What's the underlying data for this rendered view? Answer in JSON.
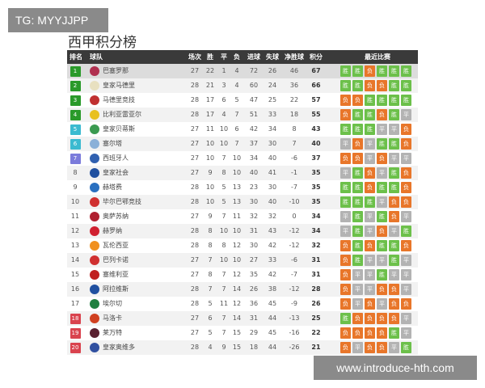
{
  "watermarks": {
    "top_left": "TG: MYYJJPP",
    "bottom_right": "www.introduce-hth.com"
  },
  "title": "西甲积分榜",
  "headers": {
    "rank": "排名",
    "team": "球队",
    "played": "场次",
    "won": "胜",
    "drawn": "平",
    "lost": "负",
    "gf": "进球",
    "ga": "失球",
    "gd": "净胜球",
    "pts": "积分",
    "form": "最近比赛"
  },
  "colors": {
    "win": "#6cc04a",
    "loss": "#e8762a",
    "draw": "#b3b3b3",
    "rank_cl": "#2a9a2a",
    "rank_el": "#3bbad0",
    "rank_conf": "#7b7bdb",
    "rank_rel": "#d9434e"
  },
  "rows": [
    {
      "rank": "1",
      "team": "巴塞罗那",
      "p": "27",
      "w": "22",
      "d": "1",
      "l": "4",
      "gf": "72",
      "ga": "26",
      "gd": "46",
      "pts": "67",
      "form": [
        "胜",
        "胜",
        "负",
        "胜",
        "胜",
        "胜"
      ]
    },
    {
      "rank": "2",
      "team": "皇家马德里",
      "p": "28",
      "w": "21",
      "d": "3",
      "l": "4",
      "gf": "60",
      "ga": "24",
      "gd": "36",
      "pts": "66",
      "form": [
        "胜",
        "胜",
        "负",
        "负",
        "胜",
        "胜"
      ]
    },
    {
      "rank": "3",
      "team": "马德里竞技",
      "p": "28",
      "w": "17",
      "d": "6",
      "l": "5",
      "gf": "47",
      "ga": "25",
      "gd": "22",
      "pts": "57",
      "form": [
        "负",
        "负",
        "胜",
        "胜",
        "胜",
        "胜"
      ]
    },
    {
      "rank": "4",
      "team": "比利亚雷亚尔",
      "p": "28",
      "w": "17",
      "d": "4",
      "l": "7",
      "gf": "51",
      "ga": "33",
      "gd": "18",
      "pts": "55",
      "form": [
        "负",
        "胜",
        "胜",
        "负",
        "胜",
        "平"
      ]
    },
    {
      "rank": "5",
      "team": "皇家贝蒂斯",
      "p": "27",
      "w": "11",
      "d": "10",
      "l": "6",
      "gf": "42",
      "ga": "34",
      "gd": "8",
      "pts": "43",
      "form": [
        "胜",
        "胜",
        "胜",
        "平",
        "平",
        "负"
      ]
    },
    {
      "rank": "6",
      "team": "塞尔塔",
      "p": "27",
      "w": "10",
      "d": "10",
      "l": "7",
      "gf": "37",
      "ga": "30",
      "gd": "7",
      "pts": "40",
      "form": [
        "平",
        "负",
        "平",
        "胜",
        "胜",
        "负"
      ]
    },
    {
      "rank": "7",
      "team": "西班牙人",
      "p": "27",
      "w": "10",
      "d": "7",
      "l": "10",
      "gf": "34",
      "ga": "40",
      "gd": "-6",
      "pts": "37",
      "form": [
        "负",
        "负",
        "平",
        "负",
        "平",
        "平"
      ]
    },
    {
      "rank": "8",
      "team": "皇家社会",
      "p": "27",
      "w": "9",
      "d": "8",
      "l": "10",
      "gf": "40",
      "ga": "41",
      "gd": "-1",
      "pts": "35",
      "form": [
        "平",
        "胜",
        "负",
        "平",
        "胜",
        "负"
      ]
    },
    {
      "rank": "9",
      "team": "赫塔费",
      "p": "28",
      "w": "10",
      "d": "5",
      "l": "13",
      "gf": "23",
      "ga": "30",
      "gd": "-7",
      "pts": "35",
      "form": [
        "胜",
        "胜",
        "负",
        "胜",
        "胜",
        "负"
      ]
    },
    {
      "rank": "10",
      "team": "毕尔巴鄂竞技",
      "p": "28",
      "w": "10",
      "d": "5",
      "l": "13",
      "gf": "30",
      "ga": "40",
      "gd": "-10",
      "pts": "35",
      "form": [
        "胜",
        "胜",
        "胜",
        "平",
        "负",
        "负"
      ]
    },
    {
      "rank": "11",
      "team": "奥萨苏纳",
      "p": "27",
      "w": "9",
      "d": "7",
      "l": "11",
      "gf": "32",
      "ga": "32",
      "gd": "0",
      "pts": "34",
      "form": [
        "平",
        "胜",
        "平",
        "胜",
        "负",
        "平"
      ]
    },
    {
      "rank": "12",
      "team": "赫罗纳",
      "p": "28",
      "w": "8",
      "d": "10",
      "l": "10",
      "gf": "31",
      "ga": "43",
      "gd": "-12",
      "pts": "34",
      "form": [
        "平",
        "胜",
        "平",
        "负",
        "平",
        "胜"
      ]
    },
    {
      "rank": "13",
      "team": "瓦伦西亚",
      "p": "28",
      "w": "8",
      "d": "8",
      "l": "12",
      "gf": "30",
      "ga": "42",
      "gd": "-12",
      "pts": "32",
      "form": [
        "负",
        "胜",
        "负",
        "胜",
        "胜",
        "负"
      ]
    },
    {
      "rank": "14",
      "team": "巴列卡诺",
      "p": "27",
      "w": "7",
      "d": "10",
      "l": "10",
      "gf": "27",
      "ga": "33",
      "gd": "-6",
      "pts": "31",
      "form": [
        "负",
        "胜",
        "平",
        "平",
        "胜",
        "平"
      ]
    },
    {
      "rank": "15",
      "team": "塞维利亚",
      "p": "27",
      "w": "8",
      "d": "7",
      "l": "12",
      "gf": "35",
      "ga": "42",
      "gd": "-7",
      "pts": "31",
      "form": [
        "负",
        "平",
        "平",
        "胜",
        "平",
        "平"
      ]
    },
    {
      "rank": "16",
      "team": "阿拉维斯",
      "p": "28",
      "w": "7",
      "d": "7",
      "l": "14",
      "gf": "26",
      "ga": "38",
      "gd": "-12",
      "pts": "28",
      "form": [
        "负",
        "平",
        "平",
        "负",
        "负",
        "平"
      ]
    },
    {
      "rank": "17",
      "team": "埃尔切",
      "p": "28",
      "w": "5",
      "d": "11",
      "l": "12",
      "gf": "36",
      "ga": "45",
      "gd": "-9",
      "pts": "26",
      "form": [
        "负",
        "平",
        "负",
        "平",
        "负",
        "负"
      ]
    },
    {
      "rank": "18",
      "team": "马洛卡",
      "p": "27",
      "w": "6",
      "d": "7",
      "l": "14",
      "gf": "31",
      "ga": "44",
      "gd": "-13",
      "pts": "25",
      "form": [
        "胜",
        "负",
        "负",
        "负",
        "负",
        "平"
      ]
    },
    {
      "rank": "19",
      "team": "莱万特",
      "p": "27",
      "w": "5",
      "d": "7",
      "l": "15",
      "gf": "29",
      "ga": "45",
      "gd": "-16",
      "pts": "22",
      "form": [
        "负",
        "负",
        "负",
        "负",
        "胜",
        "平"
      ]
    },
    {
      "rank": "20",
      "team": "皇家奥维多",
      "p": "28",
      "w": "4",
      "d": "9",
      "l": "15",
      "gf": "18",
      "ga": "44",
      "gd": "-26",
      "pts": "21",
      "form": [
        "负",
        "平",
        "负",
        "负",
        "平",
        "胜"
      ]
    }
  ]
}
